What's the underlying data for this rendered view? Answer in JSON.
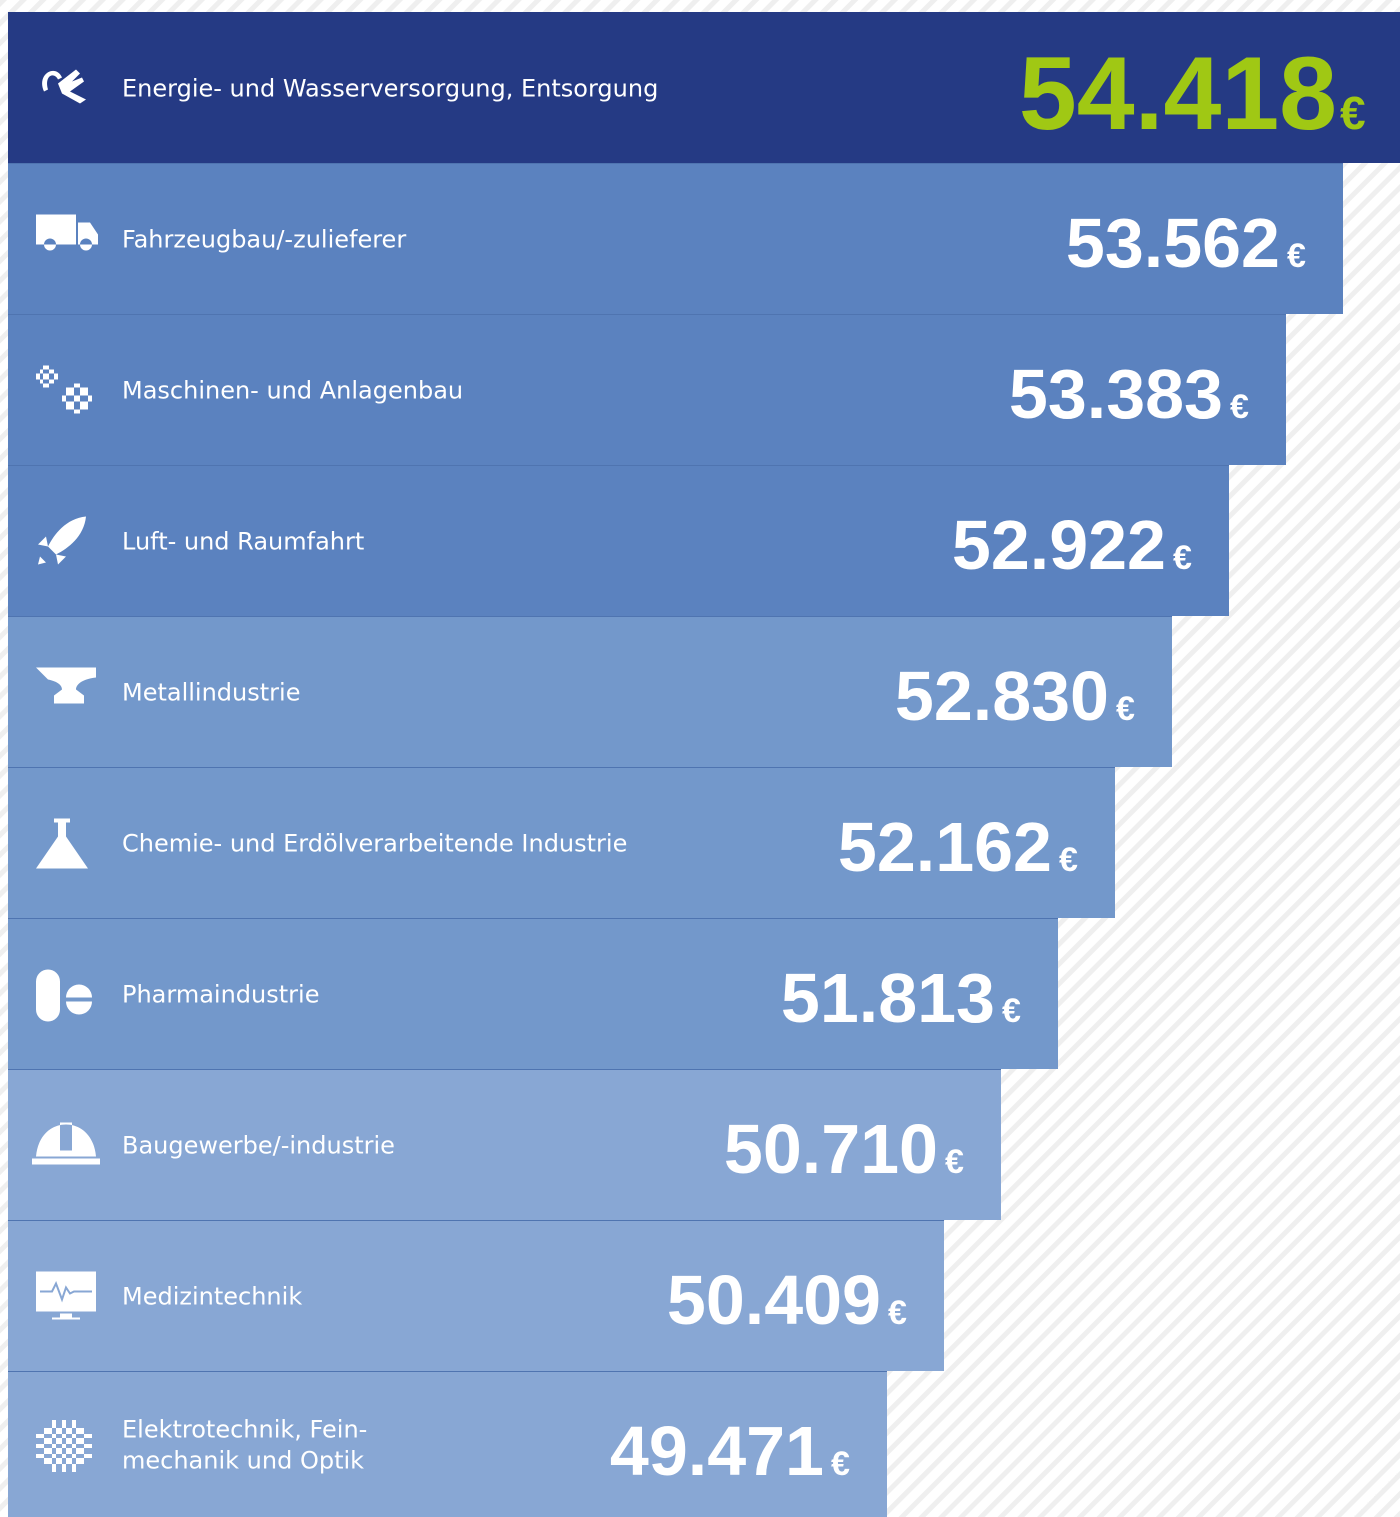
{
  "currency": "€",
  "rows": [
    {
      "label": [
        "Energie- und Wasserversorgung, Entsorgung"
      ],
      "value": "54.418"
    },
    {
      "label": [
        "Fahrzeugbau/-zulieferer"
      ],
      "value": "53.562"
    },
    {
      "label": [
        "Maschinen- und Anlagenbau"
      ],
      "value": "53.383"
    },
    {
      "label": [
        "Luft- und Raumfahrt"
      ],
      "value": "52.922"
    },
    {
      "label": [
        "Metallindustrie"
      ],
      "value": "52.830"
    },
    {
      "label": [
        "Chemie- und Erdölverarbeitende Industrie"
      ],
      "value": "52.162"
    },
    {
      "label": [
        "Pharmaindustrie"
      ],
      "value": "51.813"
    },
    {
      "label": [
        "Baugewerbe/-industrie"
      ],
      "value": "50.710"
    },
    {
      "label": [
        "Medizintechnik"
      ],
      "value": "50.409"
    },
    {
      "label": [
        "Elektrotechnik, Fein-",
        "mechanik und Optik"
      ],
      "value": "49.471"
    }
  ]
}
